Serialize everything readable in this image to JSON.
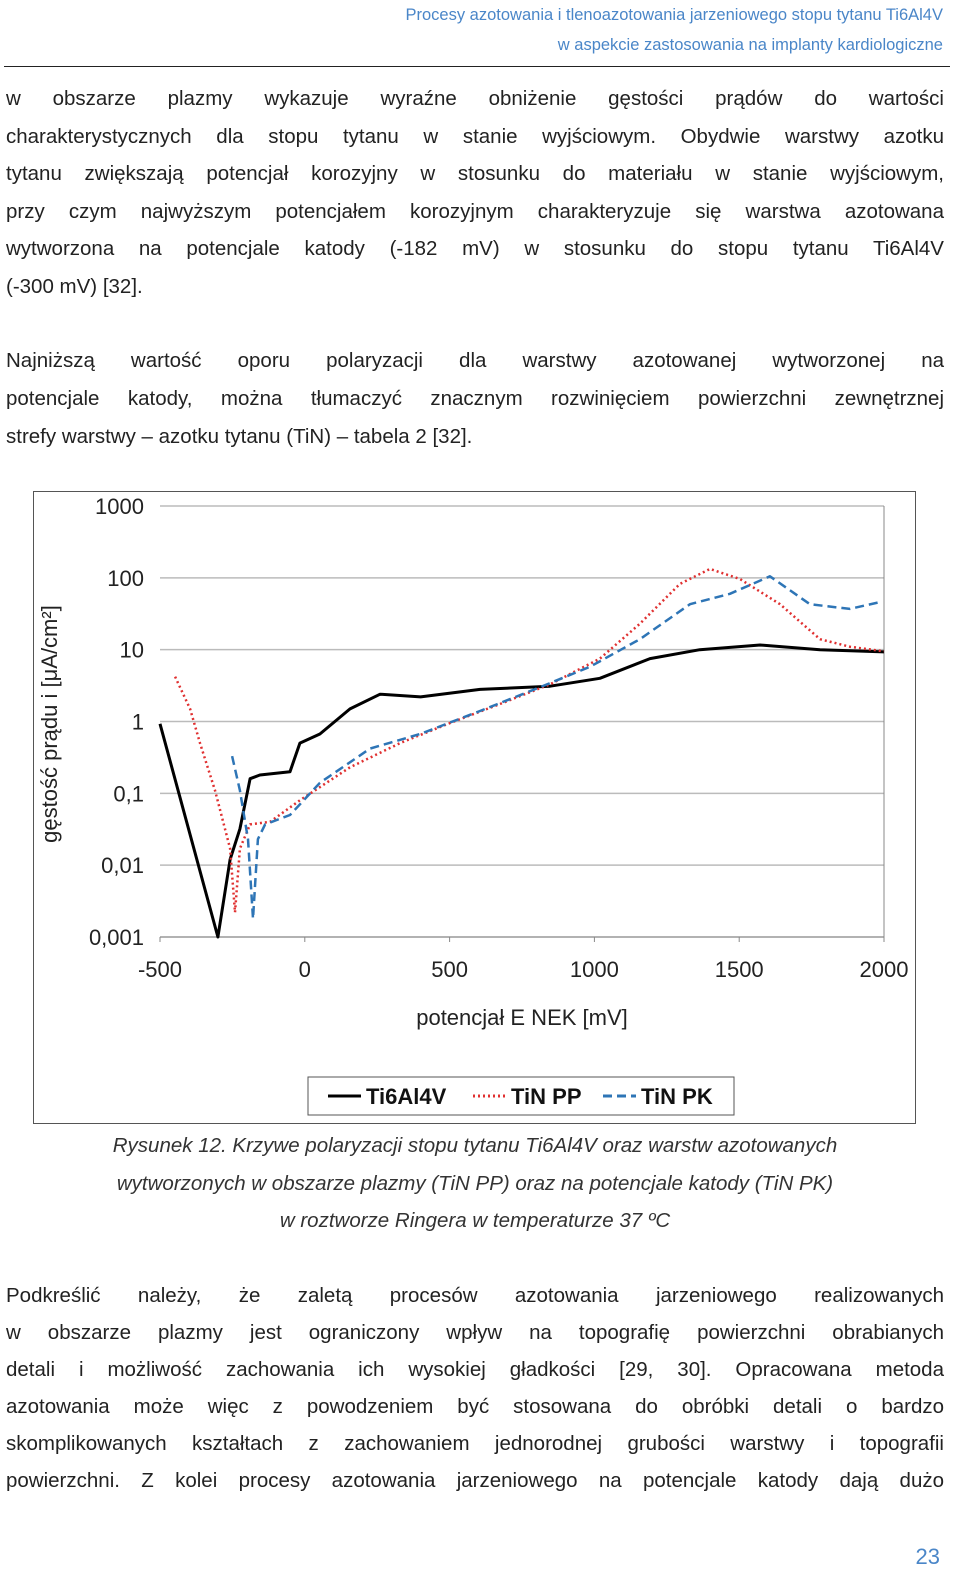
{
  "header": {
    "lines": [
      "Procesy azotowania i tlenoazotowania jarzeniowego stopu tytanu Ti6Al4V",
      "w aspekcie zastosowania na implanty kardiologiczne"
    ]
  },
  "paragraphs": [
    [
      "w obszarze plazmy wykazuje wyraźne obniżenie gęstości prądów do wartości",
      "charakterystycznych dla stopu tytanu w stanie wyjściowym. Obydwie warstwy azotku",
      "tytanu zwiększają potencjał korozyjny w stosunku do materiału w stanie wyjściowym,",
      "przy czym najwyższym potencjałem korozyjnym charakteryzuje się warstwa azotowana",
      "wytworzona na potencjale katody (-182 mV) w stosunku do stopu tytanu Ti6Al4V",
      "(-300 mV) [32]."
    ],
    [
      "Najniższą wartość oporu polaryzacji dla warstwy azotowanej wytworzonej na",
      "potencjale katody, można tłumaczyć znacznym rozwinięciem powierzchni zewnętrznej",
      "strefy warstwy – azotku tytanu (TiN) – tabela 2 [32]."
    ],
    [
      "Podkreślić należy, że zaletą procesów azotowania jarzeniowego realizowanych",
      "w obszarze plazmy jest ograniczony wpływ na topografię powierzchni obrabianych",
      "detali i możliwość zachowania ich wysokiej gładkości [29, 30]. Opracowana metoda",
      "azotowania może więc z powodzeniem być stosowana do obróbki detali o bardzo",
      "skomplikowanych kształtach z zachowaniem jednorodnej grubości warstwy i topografii",
      "powierzchni. Z kolei procesy azotowania jarzeniowego na potencjale katody dają dużo"
    ]
  ],
  "chart_data": {
    "type": "line",
    "x_label": "potencjał E NEK [mV]",
    "y_label": "gęstość prądu i [μA/cm²]",
    "xlim": [
      -500,
      2000
    ],
    "xticks": [
      -500,
      0,
      500,
      1000,
      1500,
      2000
    ],
    "ylim": [
      0.001,
      1000
    ],
    "yscale": "log",
    "yticks": [
      {
        "value": 0.001,
        "label": "0,001"
      },
      {
        "value": 0.01,
        "label": "0,01"
      },
      {
        "value": 0.1,
        "label": "0,1"
      },
      1,
      10,
      100,
      1000
    ],
    "grid": true,
    "legend": "bottom",
    "series": [
      {
        "name": "Ti6Al4V",
        "color": "#000000",
        "style": "solid",
        "x": [
          -500,
          -300,
          -258,
          -224,
          -189,
          -155,
          -51,
          -17,
          52,
          156,
          260,
          400,
          605,
          847,
          1019,
          1192,
          1364,
          1572,
          1779,
          2000
        ],
        "values": [
          0.93,
          0.001,
          0.012,
          0.032,
          0.16,
          0.18,
          0.2,
          0.5,
          0.67,
          1.5,
          2.4,
          2.2,
          2.8,
          3.1,
          4,
          7.5,
          10,
          11.6,
          10,
          9.3
        ]
      },
      {
        "name": "TiN PP",
        "color": "#e03030",
        "style": "dotted",
        "x": [
          -448,
          -396,
          -362,
          -310,
          -258,
          -241,
          -224,
          -189,
          -120,
          -17,
          156,
          329,
          501,
          674,
          847,
          1019,
          1157,
          1295,
          1399,
          1503,
          1641,
          1779,
          1882,
          2000
        ],
        "values": [
          4.2,
          1.5,
          0.5,
          0.11,
          0.017,
          0.0022,
          0.017,
          0.037,
          0.04,
          0.08,
          0.23,
          0.5,
          0.95,
          1.75,
          3.3,
          7.5,
          23,
          82,
          133,
          96,
          43,
          14,
          11,
          9.5
        ]
      },
      {
        "name": "TiN PK",
        "color": "#2e75b6",
        "style": "dashed",
        "x": [
          -251,
          -224,
          -196,
          -179,
          -162,
          -137,
          -51,
          52,
          225,
          398,
          605,
          812,
          985,
          1157,
          1330,
          1468,
          1606,
          1744,
          1882,
          1986
        ],
        "values": [
          0.33,
          0.11,
          0.023,
          0.0018,
          0.023,
          0.037,
          0.05,
          0.14,
          0.42,
          0.67,
          1.4,
          3,
          5.8,
          14,
          43,
          60,
          105,
          43,
          37,
          46
        ]
      }
    ]
  },
  "caption": [
    "Rysunek 12. Krzywe polaryzacji stopu tytanu Ti6Al4V oraz warstw azotowanych",
    "wytworzonych w obszarze plazmy (TiN PP) oraz na potencjale katody (TiN PK)",
    "w roztworze Ringera w temperaturze 37 ºC"
  ],
  "page_number": "23"
}
